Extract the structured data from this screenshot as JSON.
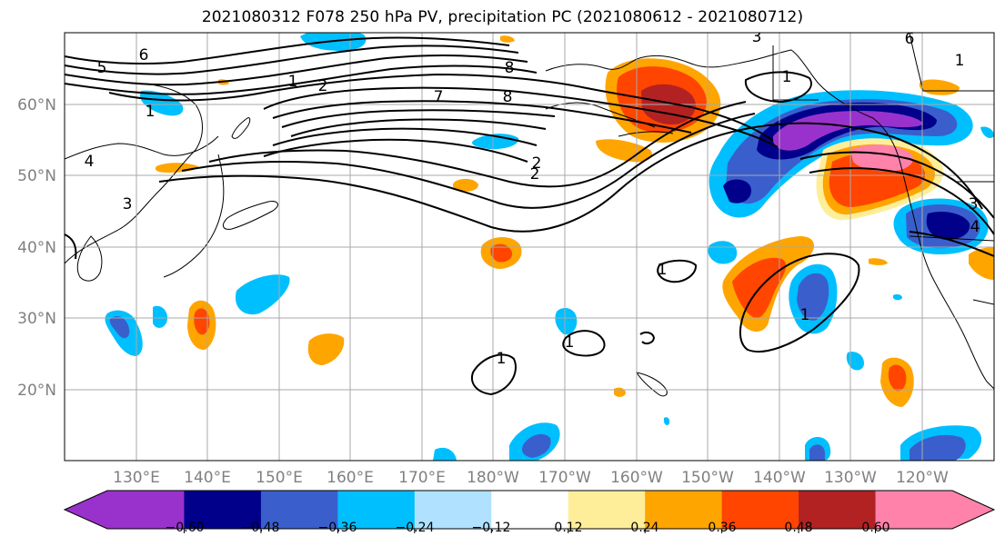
{
  "title": "2021080312 F078 250 hPa PV, precipitation PC (2021080612 - 2021080712)",
  "lat_labels": [
    "60°N",
    "50°N",
    "40°N",
    "30°N",
    "20°N"
  ],
  "lon_labels": [
    "130°E",
    "140°E",
    "150°E",
    "160°E",
    "170°E",
    "180°W",
    "170°W",
    "160°W",
    "150°W",
    "140°W",
    "130°W",
    "120°W"
  ],
  "colorbar": {
    "colors": [
      "#9932cc",
      "#00008b",
      "#3a5fcd",
      "#00bfff",
      "#b0e2ff",
      "#ffffff",
      "#ffee99",
      "#ffa500",
      "#ff4500",
      "#b22222",
      "#ff82ab"
    ],
    "ticks": [
      "−0.60",
      "−0.48",
      "−0.36",
      "−0.24",
      "−0.12",
      "0.12",
      "0.24",
      "0.36",
      "0.48",
      "0.60"
    ]
  },
  "pv_contour_labels": [
    "1",
    "2",
    "3",
    "4",
    "5",
    "6",
    "7",
    "8",
    "1",
    "2",
    "3",
    "1",
    "1",
    "1",
    "1",
    "1",
    "3",
    "4",
    "6",
    "8",
    "2",
    "1"
  ]
}
